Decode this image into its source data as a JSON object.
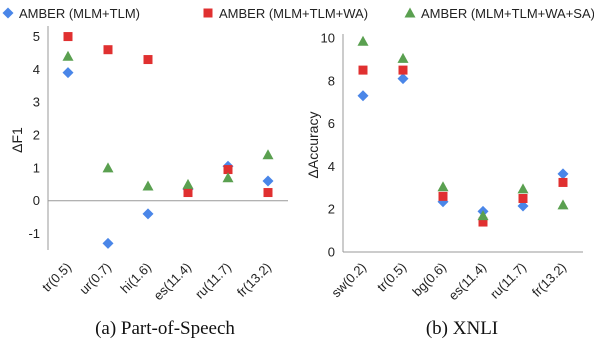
{
  "legend": {
    "entries": [
      {
        "label": "AMBER (MLM+TLM)",
        "color": "#4a86e8",
        "marker": "diamond"
      },
      {
        "label": "AMBER (MLM+TLM+WA)",
        "color": "#e03030",
        "marker": "square"
      },
      {
        "label": "AMBER (MLM+TLM+WA+SA)",
        "color": "#5aa050",
        "marker": "triangle"
      }
    ]
  },
  "chart_data": [
    {
      "type": "scatter",
      "caption": "(a) Part-of-Speech",
      "ylabel": "ΔF1",
      "ylim": [
        -1.5,
        5.2
      ],
      "yticks": [
        -1,
        0,
        1,
        2,
        3,
        4,
        5
      ],
      "categories": [
        "tr(0.5)",
        "ur(0.7)",
        "hi(1.6)",
        "es(11.4)",
        "ru(11.7)",
        "fr(13.2)"
      ],
      "grid": false,
      "series": [
        {
          "name": "AMBER (MLM+TLM)",
          "values": [
            3.9,
            -1.3,
            -0.4,
            0.35,
            1.05,
            0.6
          ]
        },
        {
          "name": "AMBER (MLM+TLM+WA)",
          "values": [
            5.0,
            4.6,
            4.3,
            0.25,
            0.95,
            0.25
          ]
        },
        {
          "name": "AMBER (MLM+TLM+WA+SA)",
          "values": [
            4.4,
            1.0,
            0.45,
            0.5,
            0.7,
            1.4
          ]
        }
      ]
    },
    {
      "type": "scatter",
      "caption": "(b) XNLI",
      "ylabel": "ΔAccuracy",
      "ylim": [
        0,
        10
      ],
      "yticks": [
        0,
        2,
        4,
        6,
        8,
        10
      ],
      "categories": [
        "sw(0.2)",
        "tr(0.5)",
        "bg(0.6)",
        "es(11.4)",
        "ru(11.7)",
        "fr(13.2)"
      ],
      "grid": false,
      "series": [
        {
          "name": "AMBER (MLM+TLM)",
          "values": [
            7.3,
            8.1,
            2.35,
            1.9,
            2.15,
            3.65
          ]
        },
        {
          "name": "AMBER (MLM+TLM+WA)",
          "values": [
            8.5,
            8.5,
            2.6,
            1.4,
            2.5,
            3.25
          ]
        },
        {
          "name": "AMBER (MLM+TLM+WA+SA)",
          "values": [
            9.85,
            9.05,
            3.05,
            1.7,
            2.95,
            2.2
          ]
        }
      ]
    }
  ]
}
